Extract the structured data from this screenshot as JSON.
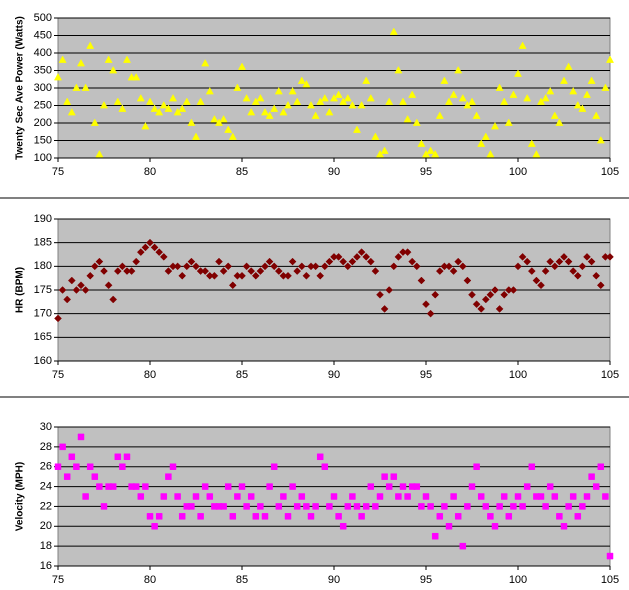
{
  "chart_data": [
    {
      "type": "scatter",
      "ylabel": "Twenty Sec Ave Power (Watts)",
      "marker": "triangle",
      "color": "#ffff00",
      "xlim": [
        75,
        105
      ],
      "xticks": [
        75,
        80,
        85,
        90,
        95,
        100,
        105
      ],
      "ylim": [
        100,
        500
      ],
      "yticks": [
        100,
        150,
        200,
        250,
        300,
        350,
        400,
        450,
        500
      ],
      "grid": true,
      "x": [
        75,
        75.25,
        75.5,
        75.75,
        76,
        76.25,
        76.5,
        76.75,
        77,
        77.25,
        77.5,
        77.75,
        78,
        78.25,
        78.5,
        78.75,
        79,
        79.25,
        79.5,
        79.75,
        80,
        80.25,
        80.5,
        80.75,
        81,
        81.25,
        81.5,
        81.75,
        82,
        82.25,
        82.5,
        82.75,
        83,
        83.25,
        83.5,
        83.75,
        84,
        84.25,
        84.5,
        84.75,
        85,
        85.25,
        85.5,
        85.75,
        86,
        86.25,
        86.5,
        86.75,
        87,
        87.25,
        87.5,
        87.75,
        88,
        88.25,
        88.5,
        88.75,
        89,
        89.25,
        89.5,
        89.75,
        90,
        90.25,
        90.5,
        90.75,
        91,
        91.25,
        91.5,
        91.75,
        92,
        92.25,
        92.5,
        92.75,
        93,
        93.25,
        93.5,
        93.75,
        94,
        94.25,
        94.5,
        94.75,
        95,
        95.25,
        95.5,
        95.75,
        96,
        96.25,
        96.5,
        96.75,
        97,
        97.25,
        97.5,
        97.75,
        98,
        98.25,
        98.5,
        98.75,
        99,
        99.25,
        99.5,
        99.75,
        100,
        100.25,
        100.5,
        100.75,
        101,
        101.25,
        101.5,
        101.75,
        102,
        102.25,
        102.5,
        102.75,
        103,
        103.25,
        103.5,
        103.75,
        104,
        104.25,
        104.5,
        104.75,
        105
      ],
      "values": [
        330,
        380,
        260,
        230,
        300,
        370,
        300,
        420,
        200,
        110,
        250,
        380,
        350,
        260,
        240,
        380,
        330,
        330,
        270,
        190,
        260,
        240,
        230,
        250,
        240,
        270,
        230,
        240,
        260,
        200,
        160,
        260,
        370,
        290,
        210,
        200,
        210,
        180,
        160,
        300,
        360,
        270,
        230,
        260,
        270,
        230,
        220,
        240,
        290,
        230,
        250,
        290,
        260,
        320,
        310,
        250,
        220,
        260,
        270,
        230,
        270,
        280,
        260,
        270,
        250,
        180,
        250,
        320,
        270,
        160,
        110,
        120,
        260,
        460,
        350,
        260,
        210,
        280,
        200,
        140,
        110,
        120,
        110,
        220,
        320,
        260,
        280,
        350,
        270,
        250,
        260,
        220,
        140,
        160,
        110,
        190,
        300,
        260,
        200,
        280,
        340,
        420,
        270,
        140,
        110,
        260,
        270,
        290,
        220,
        200,
        320,
        360,
        290,
        250,
        240,
        280,
        320,
        220,
        150,
        300,
        380
      ]
    },
    {
      "type": "scatter",
      "ylabel": "HR  (BPM)",
      "marker": "diamond",
      "color": "#800000",
      "xlim": [
        75,
        105
      ],
      "xticks": [
        75,
        80,
        85,
        90,
        95,
        100,
        105
      ],
      "ylim": [
        160,
        190
      ],
      "yticks": [
        160,
        165,
        170,
        175,
        180,
        185,
        190
      ],
      "grid": true,
      "x": [
        75,
        75.25,
        75.5,
        75.75,
        76,
        76.25,
        76.5,
        76.75,
        77,
        77.25,
        77.5,
        77.75,
        78,
        78.25,
        78.5,
        78.75,
        79,
        79.25,
        79.5,
        79.75,
        80,
        80.25,
        80.5,
        80.75,
        81,
        81.25,
        81.5,
        81.75,
        82,
        82.25,
        82.5,
        82.75,
        83,
        83.25,
        83.5,
        83.75,
        84,
        84.25,
        84.5,
        84.75,
        85,
        85.25,
        85.5,
        85.75,
        86,
        86.25,
        86.5,
        86.75,
        87,
        87.25,
        87.5,
        87.75,
        88,
        88.25,
        88.5,
        88.75,
        89,
        89.25,
        89.5,
        89.75,
        90,
        90.25,
        90.5,
        90.75,
        91,
        91.25,
        91.5,
        91.75,
        92,
        92.25,
        92.5,
        92.75,
        93,
        93.25,
        93.5,
        93.75,
        94,
        94.25,
        94.5,
        94.75,
        95,
        95.25,
        95.5,
        95.75,
        96,
        96.25,
        96.5,
        96.75,
        97,
        97.25,
        97.5,
        97.75,
        98,
        98.25,
        98.5,
        98.75,
        99,
        99.25,
        99.5,
        99.75,
        100,
        100.25,
        100.5,
        100.75,
        101,
        101.25,
        101.5,
        101.75,
        102,
        102.25,
        102.5,
        102.75,
        103,
        103.25,
        103.5,
        103.75,
        104,
        104.25,
        104.5,
        104.75,
        105
      ],
      "values": [
        169,
        175,
        173,
        177,
        175,
        176,
        175,
        178,
        180,
        181,
        179,
        176,
        173,
        179,
        180,
        179,
        179,
        181,
        183,
        184,
        185,
        184,
        183,
        182,
        179,
        180,
        180,
        178,
        180,
        181,
        180,
        179,
        179,
        178,
        178,
        181,
        179,
        180,
        176,
        178,
        178,
        180,
        179,
        178,
        179,
        180,
        181,
        180,
        179,
        178,
        178,
        181,
        179,
        180,
        178,
        180,
        180,
        178,
        180,
        181,
        182,
        182,
        181,
        180,
        181,
        182,
        183,
        182,
        181,
        179,
        174,
        171,
        175,
        180,
        182,
        183,
        183,
        181,
        180,
        177,
        172,
        170,
        174,
        179,
        180,
        180,
        179,
        181,
        180,
        177,
        174,
        172,
        171,
        173,
        174,
        175,
        171,
        174,
        175,
        175,
        180,
        182,
        181,
        179,
        177,
        176,
        179,
        181,
        180,
        181,
        182,
        181,
        179,
        178,
        180,
        182,
        181,
        178,
        176,
        182,
        182
      ]
    },
    {
      "type": "scatter",
      "ylabel": "Velocity (MPH)",
      "marker": "square",
      "color": "#ff00ff",
      "xlim": [
        75,
        105
      ],
      "xticks": [
        75,
        80,
        85,
        90,
        95,
        100,
        105
      ],
      "ylim": [
        16,
        30
      ],
      "yticks": [
        16,
        18,
        20,
        22,
        24,
        26,
        28,
        30
      ],
      "grid": true,
      "x": [
        75,
        75.25,
        75.5,
        75.75,
        76,
        76.25,
        76.5,
        76.75,
        77,
        77.25,
        77.5,
        77.75,
        78,
        78.25,
        78.5,
        78.75,
        79,
        79.25,
        79.5,
        79.75,
        80,
        80.25,
        80.5,
        80.75,
        81,
        81.25,
        81.5,
        81.75,
        82,
        82.25,
        82.5,
        82.75,
        83,
        83.25,
        83.5,
        83.75,
        84,
        84.25,
        84.5,
        84.75,
        85,
        85.25,
        85.5,
        85.75,
        86,
        86.25,
        86.5,
        86.75,
        87,
        87.25,
        87.5,
        87.75,
        88,
        88.25,
        88.5,
        88.75,
        89,
        89.25,
        89.5,
        89.75,
        90,
        90.25,
        90.5,
        90.75,
        91,
        91.25,
        91.5,
        91.75,
        92,
        92.25,
        92.5,
        92.75,
        93,
        93.25,
        93.5,
        93.75,
        94,
        94.25,
        94.5,
        94.75,
        95,
        95.25,
        95.5,
        95.75,
        96,
        96.25,
        96.5,
        96.75,
        97,
        97.25,
        97.5,
        97.75,
        98,
        98.25,
        98.5,
        98.75,
        99,
        99.25,
        99.5,
        99.75,
        100,
        100.25,
        100.5,
        100.75,
        101,
        101.25,
        101.5,
        101.75,
        102,
        102.25,
        102.5,
        102.75,
        103,
        103.25,
        103.5,
        103.75,
        104,
        104.25,
        104.5,
        104.75,
        105
      ],
      "values": [
        26,
        28,
        25,
        27,
        26,
        29,
        23,
        26,
        25,
        24,
        22,
        24,
        24,
        27,
        26,
        27,
        24,
        24,
        23,
        24,
        21,
        20,
        21,
        23,
        25,
        26,
        23,
        21,
        22,
        22,
        23,
        21,
        24,
        23,
        22,
        22,
        22,
        24,
        21,
        23,
        24,
        22,
        23,
        21,
        22,
        21,
        24,
        26,
        22,
        23,
        21,
        24,
        22,
        23,
        22,
        21,
        22,
        27,
        26,
        22,
        23,
        21,
        20,
        22,
        23,
        22,
        21,
        22,
        24,
        22,
        23,
        25,
        24,
        25,
        23,
        24,
        23,
        24,
        24,
        22,
        23,
        22,
        19,
        21,
        22,
        20,
        23,
        21,
        18,
        22,
        24,
        26,
        23,
        22,
        21,
        20,
        22,
        23,
        21,
        22,
        23,
        22,
        24,
        26,
        23,
        23,
        22,
        24,
        23,
        21,
        20,
        22,
        23,
        21,
        22,
        23,
        25,
        24,
        26,
        23,
        17
      ]
    }
  ]
}
